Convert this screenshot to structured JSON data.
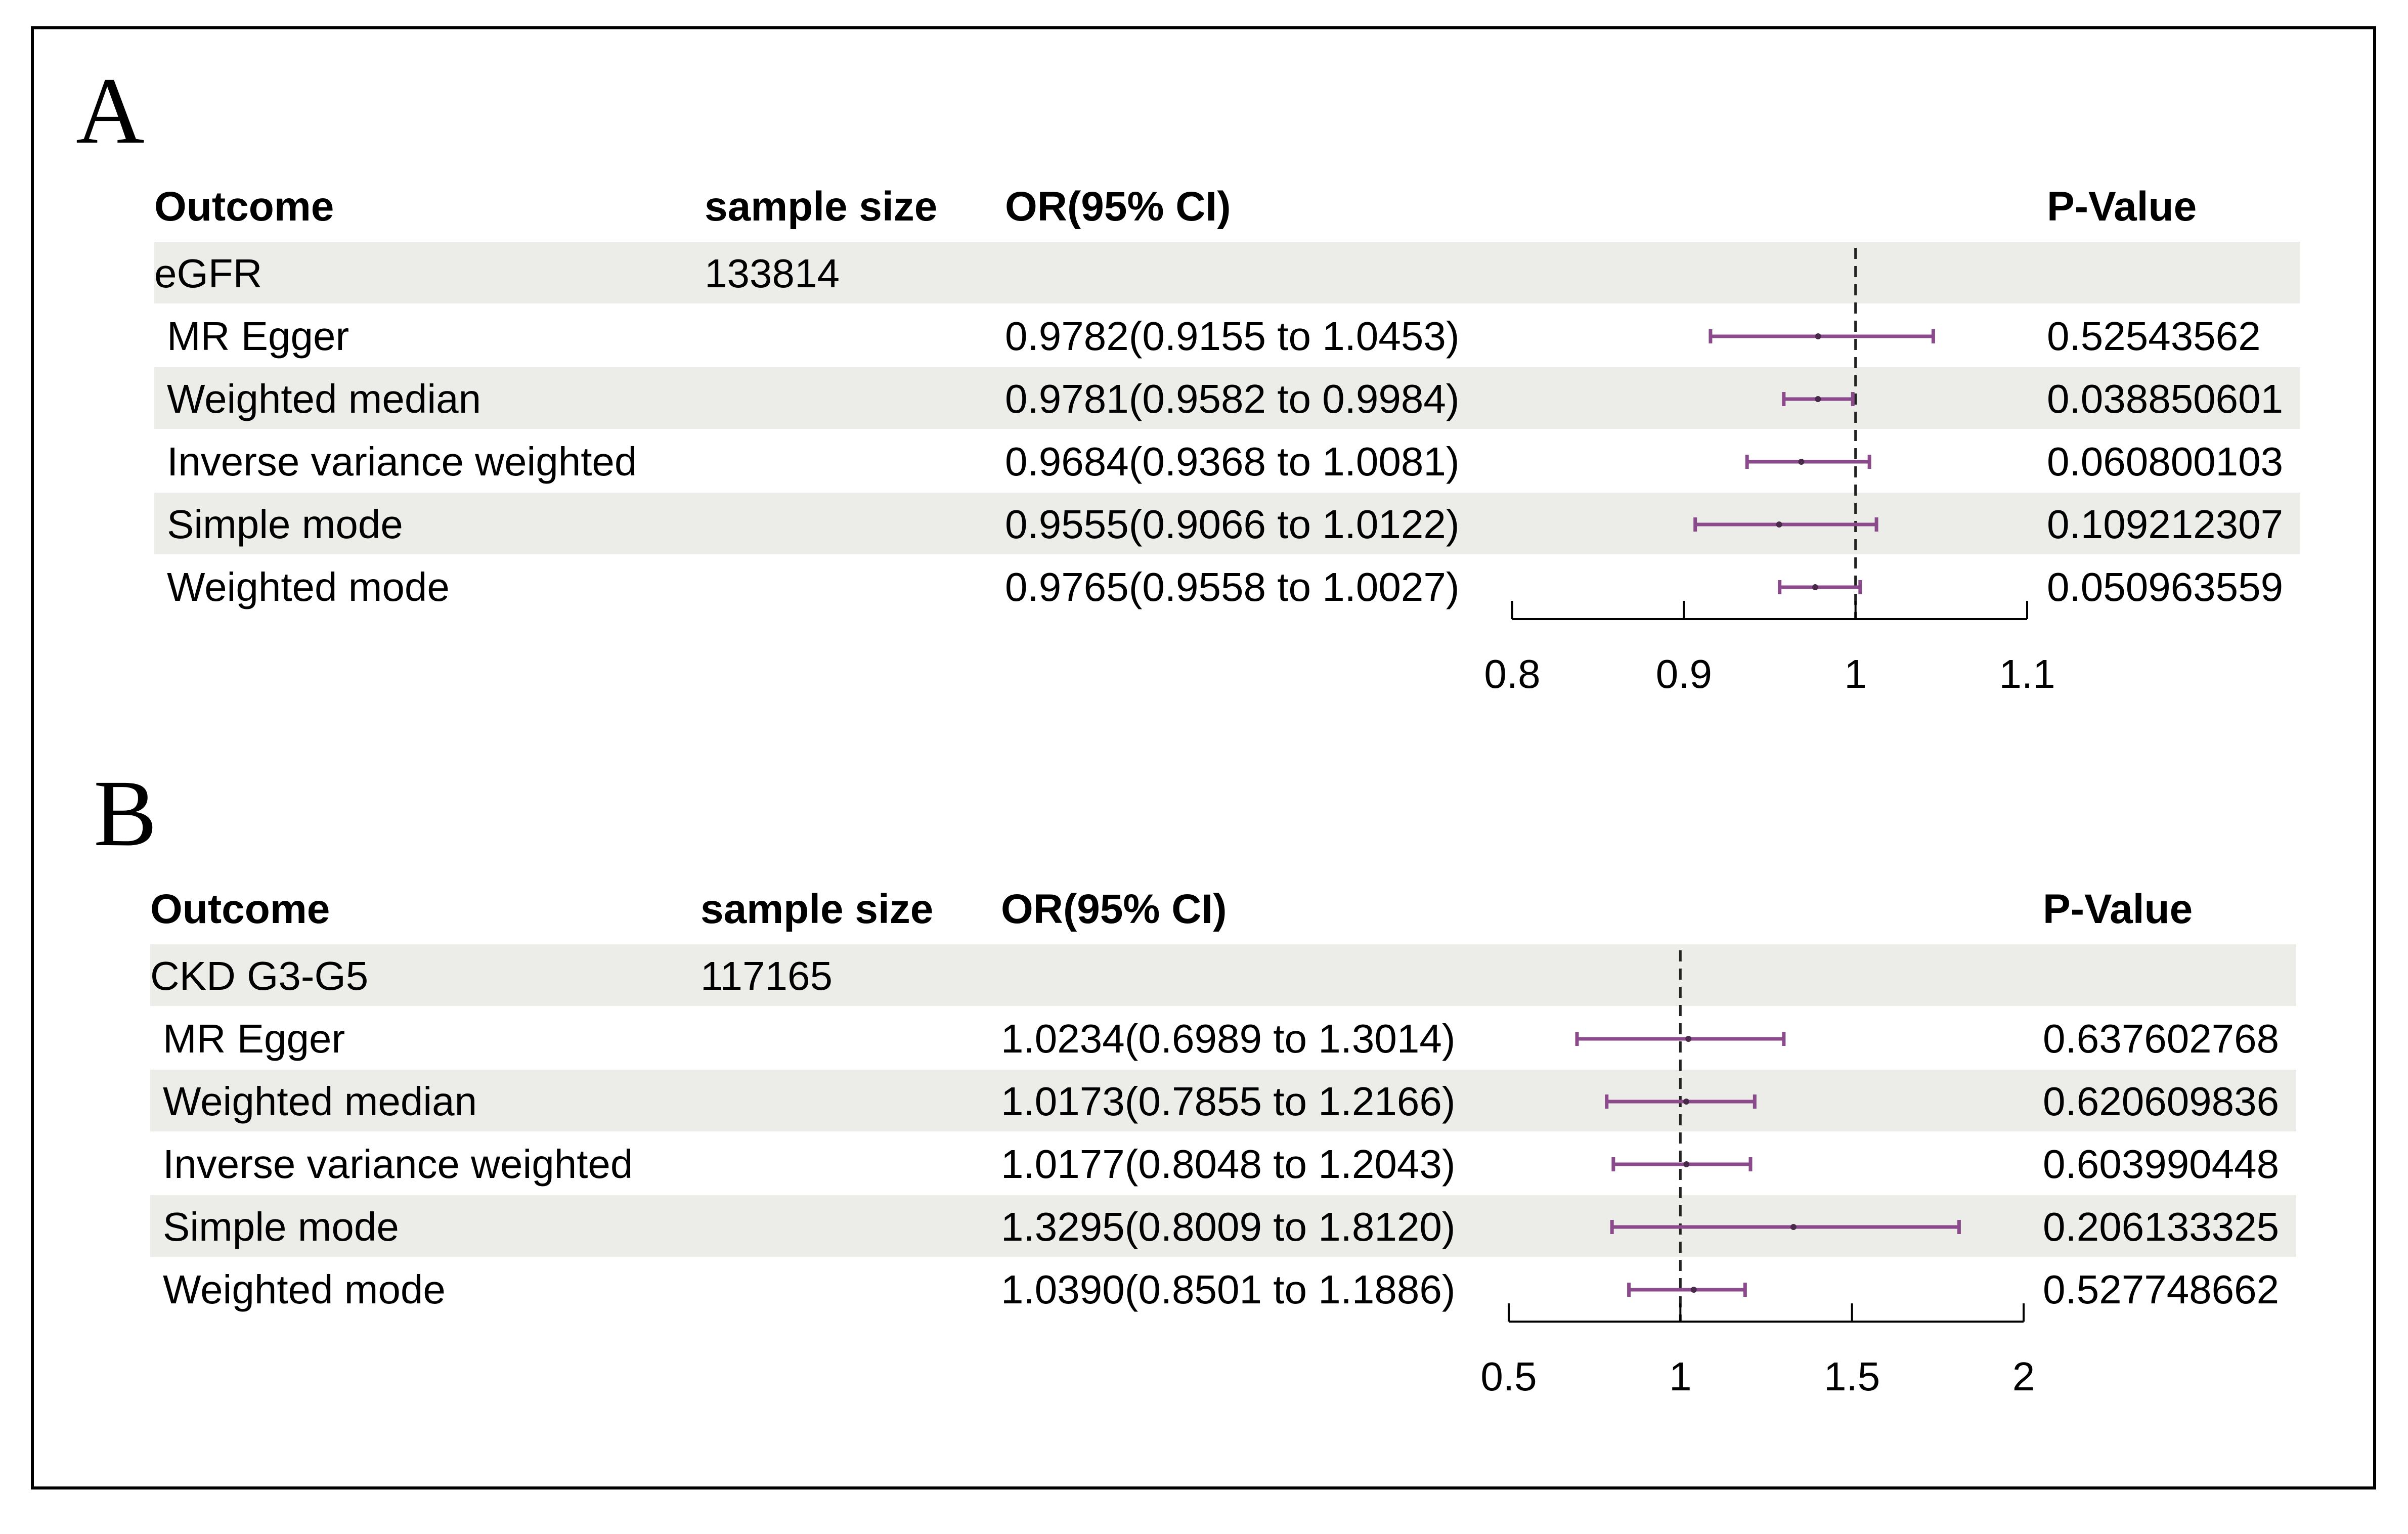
{
  "panels": [
    {
      "letter": "A",
      "headers": {
        "outcome": "Outcome",
        "sample_size": "sample size",
        "or_ci": "OR(95% CI)",
        "p_value": "P-Value"
      },
      "outcome": {
        "name": "eGFR",
        "sample_size": "133814"
      },
      "rows": [
        {
          "method": "MR Egger",
          "or_ci": "0.9782(0.9155 to 1.0453)",
          "p": "0.52543562"
        },
        {
          "method": "Weighted median",
          "or_ci": "0.9781(0.9582 to 0.9984)",
          "p": "0.038850601"
        },
        {
          "method": "Inverse variance weighted",
          "or_ci": "0.9684(0.9368 to 1.0081)",
          "p": "0.060800103"
        },
        {
          "method": "Simple mode",
          "or_ci": "0.9555(0.9066 to 1.0122)",
          "p": "0.109212307"
        },
        {
          "method": "Weighted mode",
          "or_ci": "0.9765(0.9558 to 1.0027)",
          "p": "0.050963559"
        }
      ]
    },
    {
      "letter": "B",
      "headers": {
        "outcome": "Outcome",
        "sample_size": "sample size",
        "or_ci": "OR(95% CI)",
        "p_value": "P-Value"
      },
      "outcome": {
        "name": "CKD G3-G5",
        "sample_size": "117165"
      },
      "rows": [
        {
          "method": "MR Egger",
          "or_ci": "1.0234(0.6989 to 1.3014)",
          "p": "0.637602768"
        },
        {
          "method": "Weighted median",
          "or_ci": "1.0173(0.7855 to 1.2166)",
          "p": "0.620609836"
        },
        {
          "method": "Inverse variance weighted",
          "or_ci": "1.0177(0.8048 to 1.2043)",
          "p": "0.603990448"
        },
        {
          "method": "Simple mode",
          "or_ci": "1.3295(0.8009 to 1.8120)",
          "p": "0.206133325"
        },
        {
          "method": "Weighted mode",
          "or_ci": "1.0390(0.8501 to 1.1886)",
          "p": "0.527748662"
        }
      ]
    }
  ],
  "chart_data": [
    {
      "type": "forest",
      "title": "",
      "xlim": [
        0.8,
        1.1
      ],
      "ticks": [
        "0.8",
        "0.9",
        "1",
        "1.1"
      ],
      "reference_line": 1,
      "marker_color": "#8b4a8b",
      "series": [
        {
          "name": "MR Egger",
          "or": 0.9782,
          "lower": 0.9155,
          "upper": 1.0453
        },
        {
          "name": "Weighted median",
          "or": 0.9781,
          "lower": 0.9582,
          "upper": 0.9984
        },
        {
          "name": "Inverse variance weighted",
          "or": 0.9684,
          "lower": 0.9368,
          "upper": 1.0081
        },
        {
          "name": "Simple mode",
          "or": 0.9555,
          "lower": 0.9066,
          "upper": 1.0122
        },
        {
          "name": "Weighted mode",
          "or": 0.9765,
          "lower": 0.9558,
          "upper": 1.0027
        }
      ]
    },
    {
      "type": "forest",
      "title": "",
      "xlim": [
        0.5,
        2
      ],
      "ticks": [
        "0.5",
        "1",
        "1.5",
        "2"
      ],
      "reference_line": 1,
      "marker_color": "#8b4a8b",
      "series": [
        {
          "name": "MR Egger",
          "or": 1.0234,
          "lower": 0.6989,
          "upper": 1.3014
        },
        {
          "name": "Weighted median",
          "or": 1.0173,
          "lower": 0.7855,
          "upper": 1.2166
        },
        {
          "name": "Inverse variance weighted",
          "or": 1.0177,
          "lower": 0.8048,
          "upper": 1.2043
        },
        {
          "name": "Simple mode",
          "or": 1.3295,
          "lower": 0.8009,
          "upper": 1.812
        },
        {
          "name": "Weighted mode",
          "or": 1.039,
          "lower": 0.8501,
          "upper": 1.1886
        }
      ]
    }
  ]
}
